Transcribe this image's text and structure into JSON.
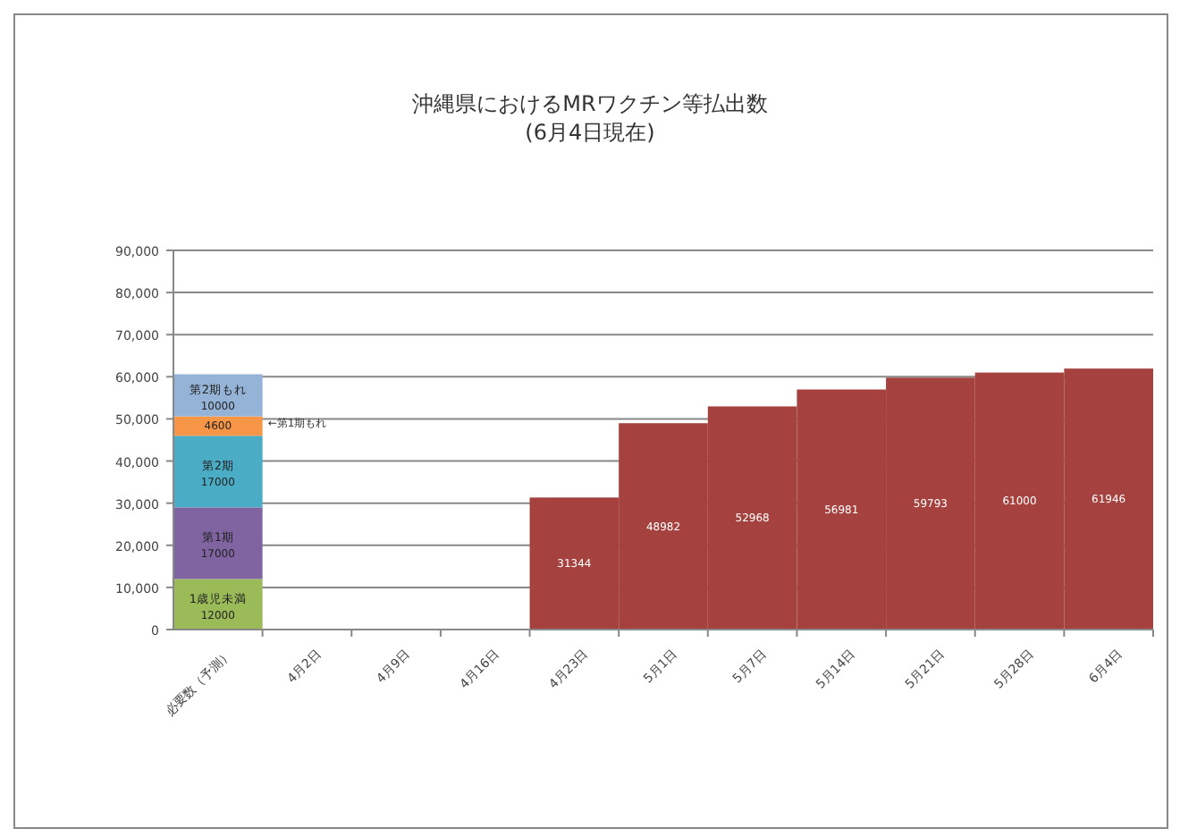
{
  "chart_data": {
    "type": "bar",
    "stacked": true,
    "title": "沖縄県におけるMRワクチン等払出数\n(6月4日現在)",
    "categories": [
      "必要数（予測）",
      "4月2日",
      "4月9日",
      "4月16日",
      "4月23日",
      "5月1日",
      "5月7日",
      "5月14日",
      "5月21日",
      "5月28日",
      "6月4日"
    ],
    "series": [
      {
        "name": "1歳児未満",
        "color": "#9bbb59",
        "values": [
          12000,
          null,
          null,
          null,
          null,
          null,
          null,
          null,
          null,
          null,
          null
        ]
      },
      {
        "name": "第1期",
        "color": "#8064a2",
        "values": [
          17000,
          null,
          null,
          null,
          null,
          null,
          null,
          null,
          null,
          null,
          null
        ]
      },
      {
        "name": "第2期",
        "color": "#4bacc6",
        "values": [
          17000,
          null,
          null,
          null,
          null,
          null,
          null,
          null,
          null,
          null,
          null
        ]
      },
      {
        "color": "#f79646",
        "values": [
          4600,
          null,
          null,
          null,
          null,
          null,
          null,
          null,
          null,
          null,
          null
        ]
      },
      {
        "name": "第2期もれ",
        "color": "#95b3d7",
        "values": [
          10000,
          null,
          null,
          null,
          null,
          null,
          null,
          null,
          null,
          null,
          null
        ]
      },
      {
        "color": "#a5423f",
        "values": [
          null,
          null,
          null,
          null,
          31344,
          48982,
          52968,
          56981,
          59793,
          61000,
          61946
        ]
      }
    ],
    "data_labels": true,
    "annotations": [
      "←第1期もれ"
    ],
    "ylim": [
      0,
      90000
    ],
    "yticks": [
      {
        "value": 0,
        "label": "0"
      },
      {
        "value": 10000,
        "label": "10,000"
      },
      {
        "value": 20000,
        "label": "20,000"
      },
      {
        "value": 30000,
        "label": "30,000"
      },
      {
        "value": 40000,
        "label": "40,000"
      },
      {
        "value": 50000,
        "label": "50,000"
      },
      {
        "value": 60000,
        "label": "60,000"
      },
      {
        "value": 70000,
        "label": "70,000"
      },
      {
        "value": 80000,
        "label": "80,000"
      },
      {
        "value": 90000,
        "label": "90,000"
      }
    ],
    "grid": "y"
  }
}
